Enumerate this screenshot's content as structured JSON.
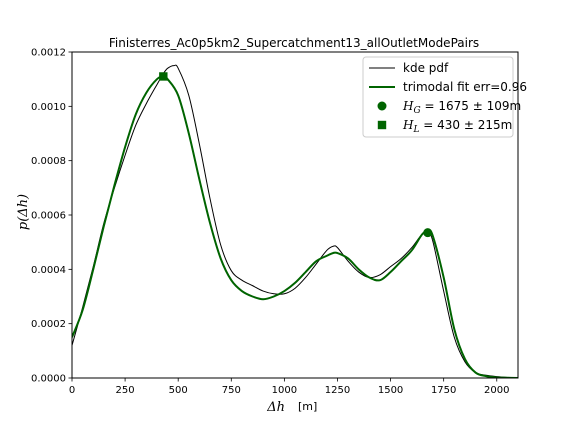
{
  "chart_data": {
    "type": "line",
    "title": "Finisterres_Ac0p5km2_Supercatchment13_allOutletModePairs",
    "xlabel_math": "Δh",
    "xlabel_unit": "[m]",
    "ylabel": "p(Δh)",
    "xlim": [
      0,
      2100
    ],
    "ylim": [
      0,
      0.0012
    ],
    "xticks": [
      0,
      250,
      500,
      750,
      1000,
      1250,
      1500,
      1750,
      2000
    ],
    "yticks": [
      0.0,
      0.0002,
      0.0004,
      0.0006,
      0.0008,
      0.001,
      0.0012
    ],
    "xtick_labels": [
      "0",
      "250",
      "500",
      "750",
      "1000",
      "1250",
      "1500",
      "1750",
      "2000"
    ],
    "ytick_labels": [
      "0.0000",
      "0.0002",
      "0.0004",
      "0.0006",
      "0.0008",
      "0.0010",
      "0.0012"
    ],
    "series": [
      {
        "name": "kde pdf",
        "color": "#000000",
        "x": [
          0,
          50,
          100,
          150,
          200,
          250,
          300,
          350,
          400,
          430,
          450,
          480,
          500,
          550,
          600,
          650,
          700,
          750,
          800,
          850,
          900,
          950,
          1000,
          1050,
          1100,
          1150,
          1200,
          1230,
          1250,
          1300,
          1350,
          1400,
          1450,
          1500,
          1550,
          1600,
          1650,
          1680,
          1700,
          1750,
          1800,
          1850,
          1900,
          1950,
          2000,
          2050,
          2100
        ],
        "y": [
          0.00012,
          0.00026,
          0.00041,
          0.00057,
          0.0007,
          0.00082,
          0.00093,
          0.00101,
          0.00108,
          0.00112,
          0.00114,
          0.00115,
          0.00114,
          0.00104,
          0.00086,
          0.00066,
          0.00049,
          0.000395,
          0.00036,
          0.00034,
          0.00032,
          0.00031,
          0.00031,
          0.00033,
          0.00037,
          0.00042,
          0.00047,
          0.000485,
          0.00048,
          0.00043,
          0.00039,
          0.00037,
          0.00038,
          0.00041,
          0.00044,
          0.00048,
          0.00053,
          0.00053,
          0.0005,
          0.00032,
          0.00015,
          6e-05,
          2e-05,
          1e-05,
          5e-06,
          2e-06,
          0.0
        ]
      },
      {
        "name": "trimodal fit err=0.96",
        "color": "#006400",
        "x": [
          0,
          50,
          100,
          150,
          200,
          250,
          300,
          350,
          400,
          430,
          450,
          500,
          550,
          600,
          650,
          700,
          750,
          800,
          850,
          900,
          950,
          1000,
          1050,
          1100,
          1150,
          1200,
          1230,
          1250,
          1300,
          1350,
          1400,
          1450,
          1500,
          1550,
          1600,
          1650,
          1680,
          1700,
          1750,
          1800,
          1850,
          1900,
          1950,
          2000,
          2050,
          2100
        ],
        "y": [
          0.00015,
          0.00025,
          0.0004,
          0.00056,
          0.00071,
          0.00085,
          0.00097,
          0.00105,
          0.0011,
          0.00111,
          0.0011,
          0.00104,
          0.0009,
          0.00073,
          0.00057,
          0.00044,
          0.00036,
          0.00032,
          0.0003,
          0.00029,
          0.0003,
          0.00032,
          0.00035,
          0.00039,
          0.00043,
          0.00045,
          0.00046,
          0.00046,
          0.00044,
          0.0004,
          0.00037,
          0.00036,
          0.00039,
          0.00043,
          0.00047,
          0.00053,
          0.00054,
          0.00052,
          0.00037,
          0.00018,
          7e-05,
          2e-05,
          7e-06,
          2e-06,
          1e-06,
          0.0
        ]
      }
    ],
    "markers": [
      {
        "name": "H_G = 1675 ± 109m",
        "shape": "circle",
        "color": "#006400",
        "x": 1675,
        "y": 0.000535
      },
      {
        "name": "H_L = 430 ± 215m",
        "shape": "square",
        "color": "#006400",
        "x": 430,
        "y": 0.00111
      }
    ],
    "legend": {
      "placement": "top-right",
      "entries": [
        {
          "label": "kde pdf",
          "kind": "line",
          "color": "#000000"
        },
        {
          "label": "trimodal fit err=0.96",
          "kind": "line",
          "color": "#006400"
        },
        {
          "label_sym": "H",
          "label_sub": "G",
          "label_rest": " = 1675 ± 109m",
          "kind": "circle",
          "color": "#006400"
        },
        {
          "label_sym": "H",
          "label_sub": "L",
          "label_rest": " = 430 ± 215m",
          "kind": "square",
          "color": "#006400"
        }
      ]
    },
    "grid": false
  }
}
